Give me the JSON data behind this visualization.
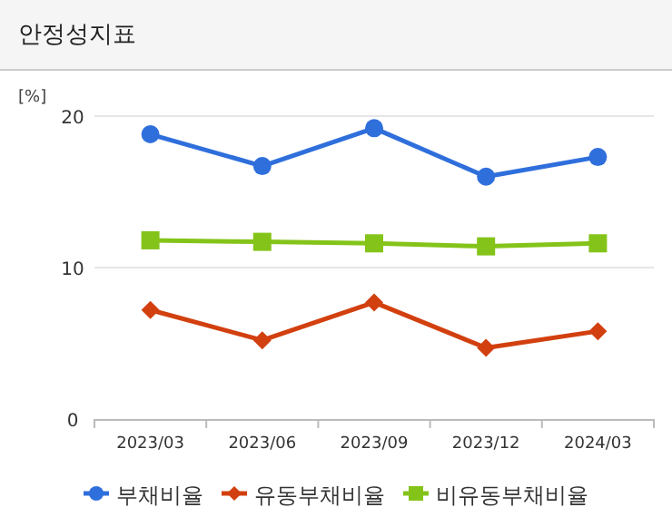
{
  "chart_data": {
    "type": "line",
    "title": "안정성지표",
    "ylabel": "[%]",
    "categories": [
      "2023/03",
      "2023/06",
      "2023/09",
      "2023/12",
      "2024/03"
    ],
    "series": [
      {
        "name": "부채비율",
        "color": "#2f6fdc",
        "marker": "circle",
        "values": [
          18.8,
          16.7,
          19.2,
          16.0,
          17.3
        ]
      },
      {
        "name": "유동부채비율",
        "color": "#d2400f",
        "marker": "diamond",
        "values": [
          7.2,
          5.2,
          7.7,
          4.7,
          5.8
        ]
      },
      {
        "name": "비유동부채비율",
        "color": "#84c41a",
        "marker": "square",
        "values": [
          11.8,
          11.7,
          11.6,
          11.4,
          11.6
        ]
      }
    ],
    "ylim": [
      0,
      20
    ],
    "yticks": [
      0,
      10,
      20
    ],
    "grid": "y",
    "legend": "bottom"
  }
}
